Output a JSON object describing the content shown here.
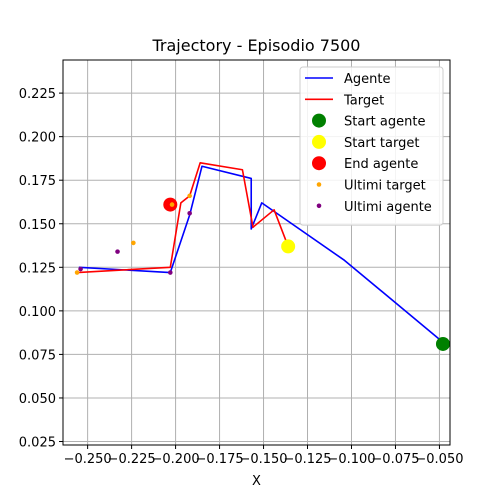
{
  "chart_data": {
    "type": "line",
    "title": "Trajectory - Episodio 7500",
    "xlabel": "X",
    "ylabel": "",
    "xlim": [
      -0.264,
      -0.044
    ],
    "ylim": [
      0.023,
      0.244
    ],
    "grid": true,
    "legend_position": "top-right",
    "x_ticks": [
      -0.25,
      -0.225,
      -0.2,
      -0.175,
      -0.15,
      -0.125,
      -0.1,
      -0.075,
      -0.05
    ],
    "x_tick_labels": [
      "−0.250",
      "−0.225",
      "−0.200",
      "−0.175",
      "−0.150",
      "−0.125",
      "−0.100",
      "−0.075",
      "−0.050"
    ],
    "y_ticks": [
      0.025,
      0.05,
      0.075,
      0.1,
      0.125,
      0.15,
      0.175,
      0.2,
      0.225
    ],
    "y_tick_labels": [
      "0.025",
      "0.050",
      "0.075",
      "0.100",
      "0.125",
      "0.150",
      "0.175",
      "0.200",
      "0.225"
    ],
    "series": [
      {
        "name": "Agente",
        "kind": "line",
        "color": "#0000ff",
        "x": [
          -0.048,
          -0.104,
          -0.151,
          -0.157,
          -0.157,
          -0.185,
          -0.192,
          -0.203,
          -0.255
        ],
        "y": [
          0.082,
          0.129,
          0.162,
          0.147,
          0.176,
          0.183,
          0.155,
          0.122,
          0.125
        ]
      },
      {
        "name": "Target",
        "kind": "line",
        "color": "#ff0000",
        "x": [
          -0.136,
          -0.144,
          -0.156,
          -0.162,
          -0.186,
          -0.192,
          -0.197,
          -0.203,
          -0.256
        ],
        "y": [
          0.137,
          0.158,
          0.148,
          0.181,
          0.185,
          0.166,
          0.162,
          0.125,
          0.122
        ]
      },
      {
        "name": "Start agente",
        "kind": "marker",
        "color": "#008000",
        "size": 7,
        "x": [
          -0.048
        ],
        "y": [
          0.081
        ]
      },
      {
        "name": "Start target",
        "kind": "marker",
        "color": "#ffff00",
        "size": 7,
        "x": [
          -0.136
        ],
        "y": [
          0.137
        ]
      },
      {
        "name": "End agente",
        "kind": "marker",
        "color": "#ff0000",
        "size": 7,
        "x": [
          -0.203
        ],
        "y": [
          0.161
        ]
      },
      {
        "name": "Ultimi target",
        "kind": "marker",
        "color": "#ffa500",
        "size": 2.3,
        "x": [
          -0.256,
          -0.224,
          -0.192,
          -0.202
        ],
        "y": [
          0.122,
          0.139,
          0.166,
          0.161
        ]
      },
      {
        "name": "Ultimi agente",
        "kind": "marker",
        "color": "#800080",
        "size": 2.3,
        "x": [
          -0.254,
          -0.233,
          -0.203,
          -0.192
        ],
        "y": [
          0.124,
          0.134,
          0.122,
          0.156
        ]
      }
    ]
  }
}
